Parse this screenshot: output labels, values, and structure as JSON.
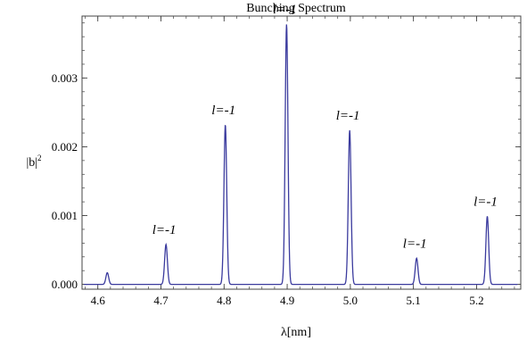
{
  "chart_data": {
    "type": "line",
    "title": "Bunching Spectrum",
    "xlabel": "λ[nm]",
    "ylabel": "|b|",
    "ylabel_superscript": "2",
    "xlim": [
      4.575,
      5.27
    ],
    "ylim": [
      -7e-05,
      0.0039
    ],
    "grid": false,
    "x_ticks": [
      4.6,
      4.7,
      4.8,
      4.9,
      5.0,
      5.1,
      5.2
    ],
    "x_tick_labels": [
      "4.6",
      "4.7",
      "4.8",
      "4.9",
      "5.0",
      "5.1",
      "5.2"
    ],
    "y_ticks": [
      0.0,
      0.001,
      0.002,
      0.003
    ],
    "y_tick_labels": [
      "0.000",
      "0.001",
      "0.002",
      "0.003"
    ],
    "color": "#3b3b9e",
    "peaks": [
      {
        "x": 4.615,
        "y": 0.00017,
        "label": ""
      },
      {
        "x": 4.708,
        "y": 0.00058,
        "label": "l=-1"
      },
      {
        "x": 4.802,
        "y": 0.00232,
        "label": "l=-1"
      },
      {
        "x": 4.899,
        "y": 0.00378,
        "label": "l=-1"
      },
      {
        "x": 4.999,
        "y": 0.00224,
        "label": "l=-1"
      },
      {
        "x": 5.105,
        "y": 0.00038,
        "label": "l=-1"
      },
      {
        "x": 5.217,
        "y": 0.00099,
        "label": "l=-1"
      }
    ]
  }
}
